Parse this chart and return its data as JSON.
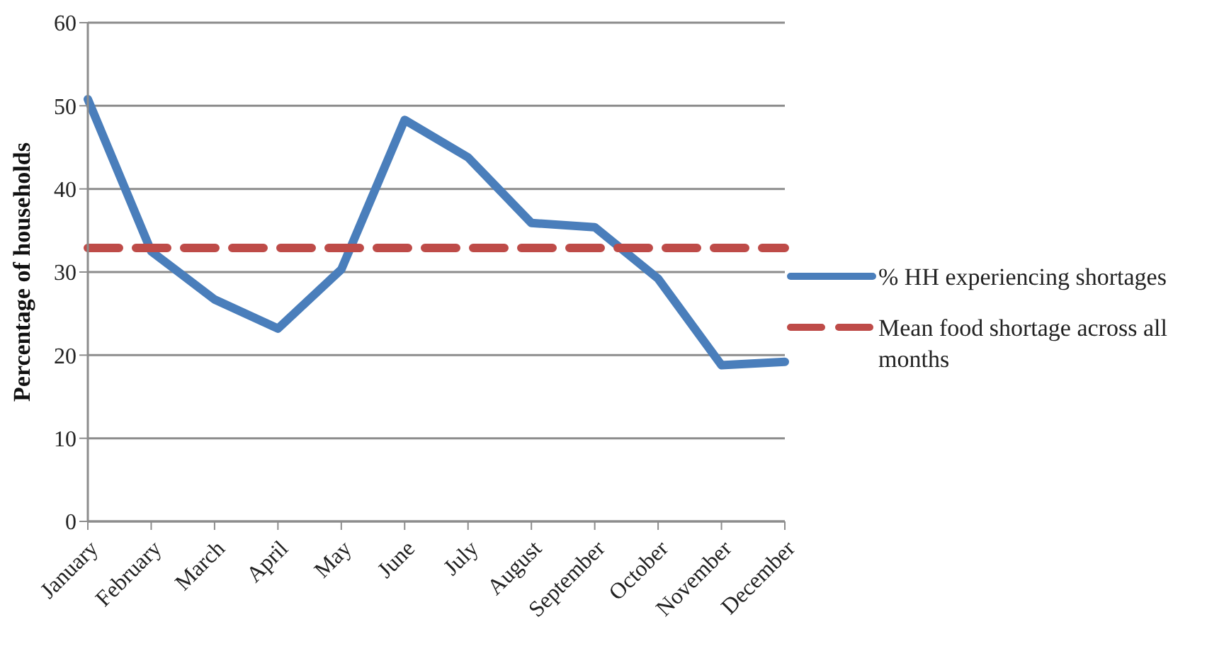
{
  "chart_data": {
    "type": "line",
    "ylabel": "Percentage of households",
    "categories": [
      "January",
      "February",
      "March",
      "April",
      "May",
      "June",
      "July",
      "August",
      "September",
      "October",
      "November",
      "December"
    ],
    "series": [
      {
        "name": "% HH experiencing shortages",
        "color": "#4a7ebb",
        "values": [
          50.8,
          32.5,
          26.7,
          23.2,
          30.3,
          48.3,
          43.8,
          35.9,
          35.4,
          29.2,
          18.8,
          19.2
        ]
      },
      {
        "name": "Mean food shortage across all months",
        "color": "#be4b48",
        "line_style": "dashed",
        "values": [
          32.9,
          32.9,
          32.9,
          32.9,
          32.9,
          32.9,
          32.9,
          32.9,
          32.9,
          32.9,
          32.9,
          32.9
        ]
      }
    ],
    "ylim": [
      0,
      60
    ],
    "yticks": [
      0,
      10,
      20,
      30,
      40,
      50,
      60
    ],
    "grid": "y",
    "legend": "right",
    "marker": "none"
  }
}
